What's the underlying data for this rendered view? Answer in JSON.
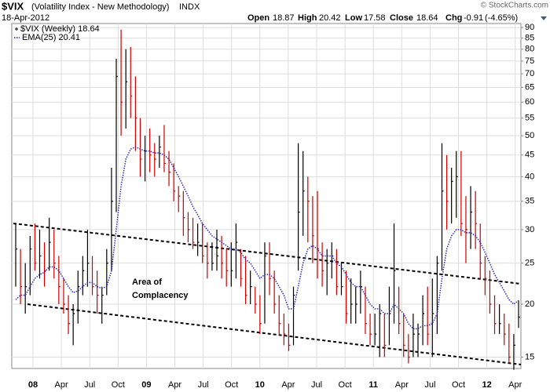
{
  "header": {
    "symbol": "$VIX",
    "description": "(Volatility Index - New Methodology)",
    "exchange": "INDX",
    "date": "18-Apr-2012",
    "copyright": "© StockCharts.com",
    "open_label": "Open",
    "open": 18.87,
    "high_label": "High",
    "high": 20.42,
    "low_label": "Low",
    "low": 17.58,
    "close_label": "Close",
    "close": 18.64,
    "chg_label": "Chg",
    "chg": -0.91,
    "chg_pct": "(-4.65%)"
  },
  "chart_data": {
    "type": "hlc",
    "log_scale": true,
    "grid": true,
    "ylim": [
      14.1,
      92
    ],
    "yticks": [
      15,
      20,
      25,
      30,
      35,
      40,
      45,
      50,
      55,
      60,
      65,
      70,
      75,
      80,
      85,
      90
    ],
    "xtick_labels": [
      "08",
      "Apr",
      "Jul",
      "Oct",
      "09",
      "Apr",
      "Jul",
      "Oct",
      "10",
      "Apr",
      "Jul",
      "Oct",
      "11",
      "Apr",
      "Jul",
      "Oct",
      "12",
      "Apr"
    ],
    "price": {
      "name": "$VIX (Weekly) 18.64",
      "up_color": "#000000",
      "down_color": "#cc0000",
      "high": [
        31,
        27,
        25,
        29,
        31,
        30,
        28,
        32,
        30,
        26,
        23,
        21,
        20,
        24,
        26,
        30,
        26,
        24,
        22,
        27,
        42,
        76,
        89,
        80,
        81,
        69,
        55,
        50,
        52,
        48,
        50,
        53,
        46,
        43,
        38,
        37,
        33,
        32,
        31,
        31,
        28,
        28,
        30,
        29,
        27,
        28,
        31,
        27,
        26,
        24,
        22,
        21,
        28,
        28,
        24,
        21,
        19,
        18,
        22,
        48,
        46,
        40,
        36,
        37,
        28,
        27,
        28,
        27,
        25,
        24,
        23,
        22,
        24,
        22,
        19,
        19,
        20,
        19,
        22,
        31,
        22,
        19,
        17,
        19,
        18,
        21,
        22,
        23,
        26,
        48,
        45,
        42,
        46,
        46,
        36,
        38,
        37,
        31,
        26,
        24,
        21,
        20,
        19,
        18,
        17,
        20.42
      ],
      "low": [
        22,
        20,
        19,
        21,
        24,
        23,
        22,
        24,
        23,
        20,
        19,
        17,
        16,
        18,
        21,
        22,
        21,
        19,
        18,
        21,
        24,
        33,
        50,
        52,
        55,
        46,
        40,
        39,
        41,
        40,
        42,
        41,
        38,
        35,
        33,
        29,
        28,
        27,
        26,
        25,
        23,
        24,
        24,
        23,
        22,
        22,
        23,
        22,
        20,
        20,
        19,
        17,
        18,
        21,
        19,
        17,
        16,
        15.5,
        16,
        24,
        29,
        28,
        25,
        23,
        22,
        21,
        23,
        21,
        21,
        18,
        18,
        18,
        19,
        17,
        16,
        16,
        15,
        15,
        16,
        18,
        17,
        15,
        14.5,
        15,
        15,
        16,
        16,
        15,
        17,
        24,
        30,
        31,
        32,
        29,
        25,
        27,
        27,
        23,
        21,
        19,
        17,
        17,
        16,
        14.5,
        14,
        17.58
      ],
      "close": [
        27,
        22,
        22,
        27,
        25,
        26,
        24,
        28,
        25,
        22,
        20,
        18,
        19,
        22,
        24,
        25,
        22,
        21,
        21,
        25,
        35,
        69,
        60,
        67,
        62,
        55,
        44,
        46,
        45,
        44,
        47,
        43,
        41,
        37,
        36,
        32,
        30,
        28,
        28,
        26,
        25,
        25,
        26,
        25,
        24,
        24,
        28,
        23,
        21,
        22,
        20,
        18,
        26,
        23,
        20,
        18,
        17,
        16,
        21,
        33,
        37,
        35,
        29,
        27,
        24,
        25,
        26,
        22,
        22,
        19,
        20,
        20,
        22,
        18,
        17,
        17,
        19,
        16,
        19,
        24,
        18,
        16,
        15,
        17,
        17,
        19,
        17,
        19,
        25,
        37,
        35,
        39,
        40,
        31,
        30,
        33,
        31,
        25,
        23,
        20,
        18,
        18,
        17,
        15,
        16,
        18.64
      ]
    },
    "ema": {
      "name": "EMA(25) 20.41",
      "color": "#2b2bb8",
      "values": [
        20.5,
        21,
        21,
        22,
        23,
        23.5,
        23.8,
        24.5,
        24.5,
        24,
        23,
        22,
        21.3,
        21.5,
        22,
        22.5,
        22.5,
        22,
        21.8,
        22,
        24,
        30,
        38,
        44,
        46.5,
        47,
        46.5,
        46,
        46,
        45.5,
        45.5,
        45,
        44,
        42,
        40,
        38,
        36,
        34,
        32.5,
        31,
        30,
        29,
        28.5,
        28,
        27.5,
        27,
        27,
        26.5,
        25.5,
        25,
        24,
        23,
        23.5,
        23.5,
        23,
        22,
        21,
        19.5,
        19.5,
        22,
        25,
        27,
        27.5,
        27,
        26,
        26,
        26,
        25,
        24.5,
        23.5,
        22.5,
        22,
        22,
        21,
        20,
        19.5,
        19.5,
        19,
        19,
        20,
        19.5,
        19,
        18,
        17.5,
        17.5,
        17.8,
        17.8,
        18,
        19,
        23,
        27,
        29,
        30,
        30,
        29.5,
        29.5,
        29,
        28,
        26.5,
        25,
        23.5,
        22.5,
        21.5,
        20.5,
        20,
        20.41
      ]
    },
    "annotations": [
      "Area of",
      "Complacency"
    ]
  }
}
